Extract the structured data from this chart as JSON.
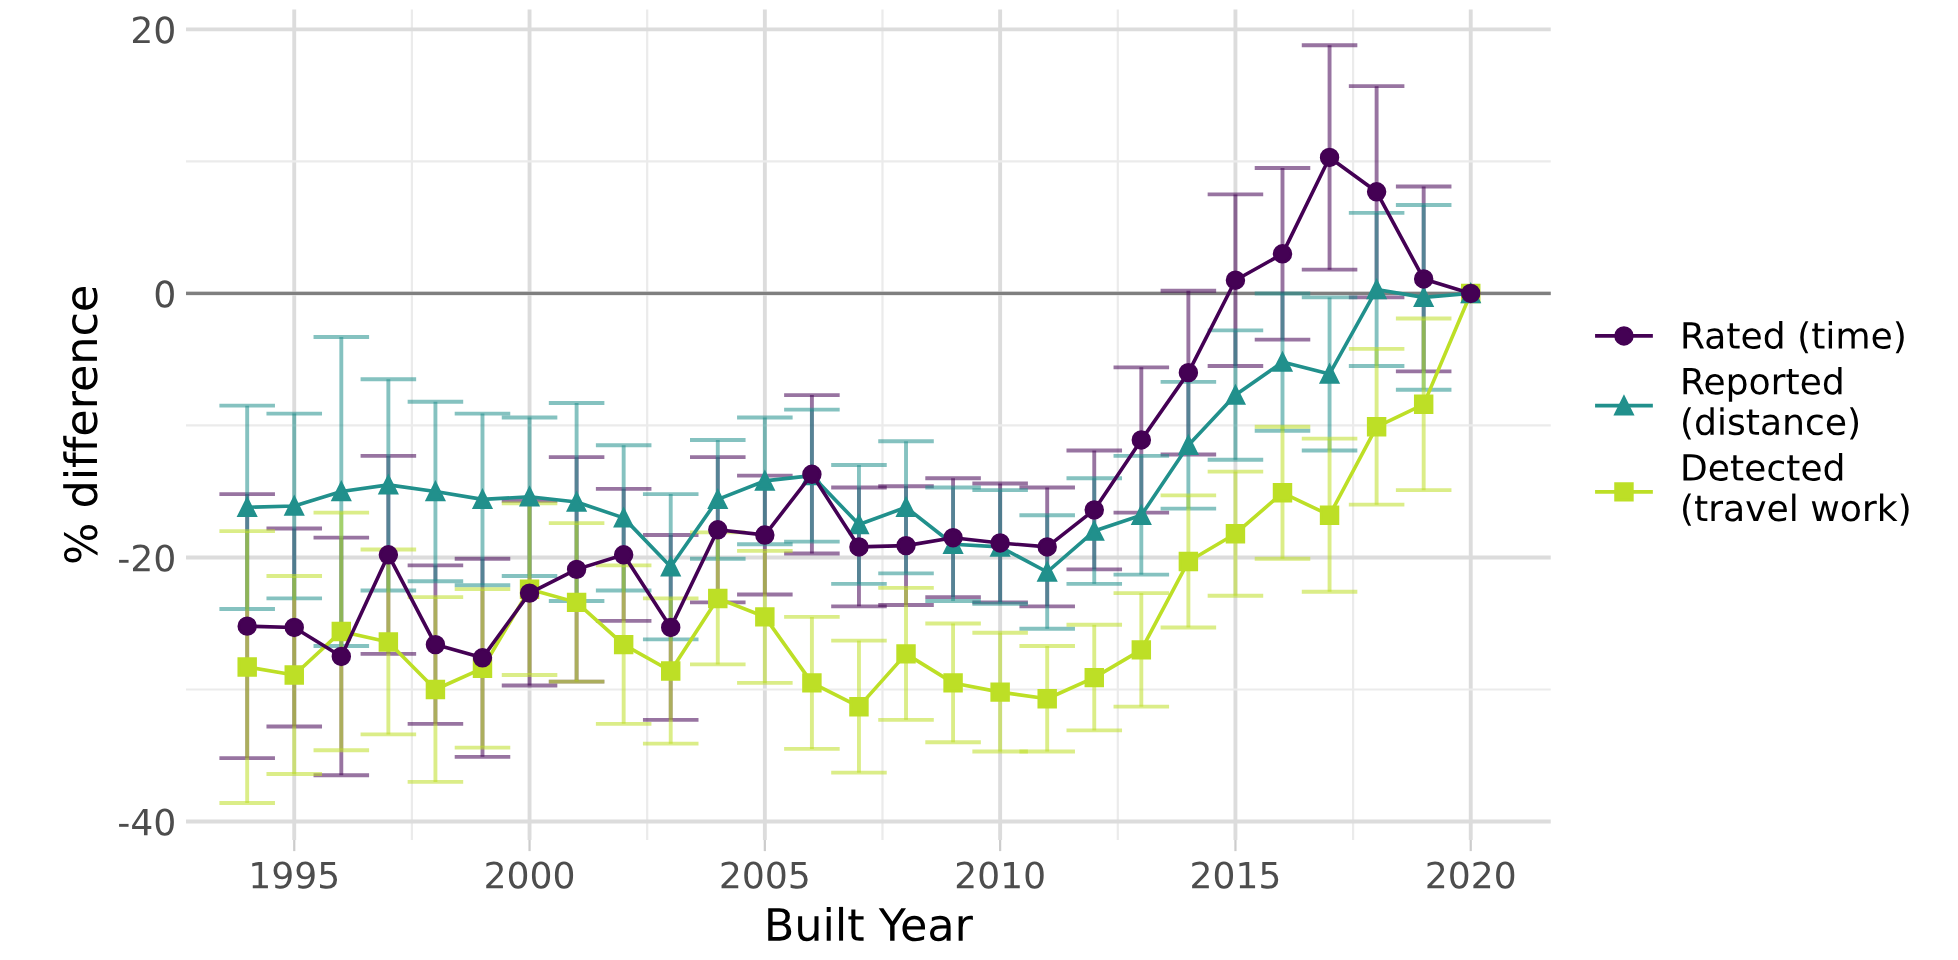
{
  "chart_data": {
    "type": "line",
    "xlabel": "Built Year",
    "ylabel": "% difference",
    "x": [
      1994,
      1995,
      1996,
      1997,
      1998,
      1999,
      2000,
      2001,
      2002,
      2003,
      2004,
      2005,
      2006,
      2007,
      2008,
      2009,
      2010,
      2011,
      2012,
      2013,
      2014,
      2015,
      2016,
      2017,
      2018,
      2019,
      2020
    ],
    "series": [
      {
        "name": "Rated (time)",
        "color": "#440154",
        "marker": "circle",
        "values": [
          -25.2,
          -25.3,
          -27.5,
          -19.8,
          -26.6,
          -27.6,
          -22.7,
          -20.9,
          -19.8,
          -25.3,
          -17.9,
          -18.3,
          -13.7,
          -19.2,
          -19.1,
          -18.5,
          -18.9,
          -19.2,
          -16.4,
          -11.1,
          -6.0,
          1.0,
          3.0,
          10.3,
          7.7,
          1.1,
          0
        ],
        "errors": [
          10,
          7.5,
          9,
          7.5,
          6,
          7.5,
          7,
          8.5,
          5,
          7,
          5.5,
          4.5,
          6,
          4.5,
          4.5,
          4.5,
          4.5,
          4.5,
          4.5,
          5.5,
          6.2,
          6.5,
          6.5,
          8.5,
          8,
          7,
          null
        ]
      },
      {
        "name": "Reported\n(distance)",
        "color": "#21908c",
        "marker": "triangle",
        "values": [
          -16.2,
          -16.1,
          -15.0,
          -14.5,
          -15.0,
          -15.6,
          -15.4,
          -15.8,
          -17.0,
          -20.7,
          -15.6,
          -14.2,
          -13.8,
          -17.5,
          -16.2,
          -19.0,
          -19.2,
          -21.1,
          -18.0,
          -16.8,
          -11.5,
          -7.7,
          -5.2,
          -6.1,
          0.3,
          -0.3,
          0
        ],
        "errors": [
          7.7,
          7,
          11.7,
          8,
          6.8,
          6.5,
          6,
          7.5,
          5.5,
          5.5,
          4.5,
          4.8,
          5,
          4.5,
          5,
          4.3,
          4.3,
          4.3,
          4,
          4.5,
          4.8,
          4.9,
          5.2,
          5.8,
          5.8,
          7,
          null
        ]
      },
      {
        "name": "Detected\n(travel work)",
        "color": "#bddf26",
        "marker": "square",
        "values": [
          -28.3,
          -28.9,
          -25.6,
          -26.4,
          -30.0,
          -28.4,
          -22.4,
          -23.4,
          -26.6,
          -28.6,
          -23.1,
          -24.5,
          -29.5,
          -31.3,
          -27.3,
          -29.5,
          -30.2,
          -30.7,
          -29.1,
          -27.0,
          -20.3,
          -18.2,
          -15.1,
          -16.8,
          -10.1,
          -8.4,
          0
        ],
        "errors": [
          10.3,
          7.5,
          9,
          7,
          7,
          6,
          6.5,
          6,
          6,
          5.5,
          5,
          5,
          5,
          5,
          5,
          4.5,
          4.5,
          4,
          4,
          4.3,
          5,
          4.7,
          5,
          5.8,
          5.9,
          6.5,
          null
        ]
      }
    ],
    "xlim": [
      1992.7,
      2021.7
    ],
    "xticks": [
      1995,
      2000,
      2005,
      2010,
      2015,
      2020
    ],
    "ylim": [
      -41.4,
      21.5
    ],
    "yticks": [
      {
        "value": -40,
        "label": "-40"
      },
      {
        "value": -20,
        "label": "-20"
      },
      0,
      20
    ],
    "ref_lines": [
      {
        "axis": "y",
        "value": 0,
        "color": "#7f7f7f"
      }
    ],
    "grid": true,
    "legend": "right",
    "line_style": "solid"
  }
}
